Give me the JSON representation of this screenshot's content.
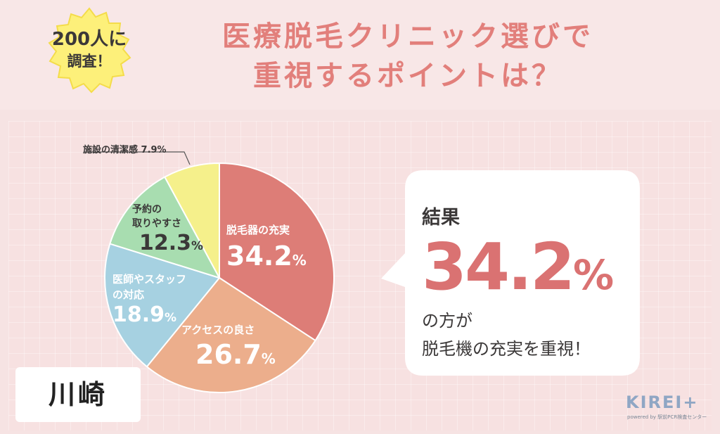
{
  "header": {
    "badge_line1": "200人に",
    "badge_line2": "調査！",
    "title_line1": "医療脱毛クリニック選びで",
    "title_line2": "重視するポイントは？"
  },
  "chart_data": {
    "type": "pie",
    "slices": [
      {
        "label": "脱毛器の充実",
        "value": 34.2,
        "display": "34.2",
        "color": "#dd7d77"
      },
      {
        "label": "アクセスの良さ",
        "value": 26.7,
        "display": "26.7",
        "color": "#ecae8c"
      },
      {
        "label": "医師やスタッフの対応",
        "value": 18.9,
        "display": "18.9",
        "color": "#a6d1e1"
      },
      {
        "label": "予約の取りやすさ",
        "value": 12.3,
        "display": "12.3",
        "color": "#a8ddb0"
      },
      {
        "label": "施設の清潔感",
        "value": 7.9,
        "display": "7.9",
        "color": "#f5f08b"
      }
    ],
    "labels": {
      "s0": {
        "name": "脱毛器の充実",
        "value": "34.2",
        "unit": "%"
      },
      "s1": {
        "name": "アクセスの良さ",
        "value": "26.7",
        "unit": "%"
      },
      "s2": {
        "name1": "医師やスタッフ",
        "name2": "の対応",
        "value": "18.9",
        "unit": "%"
      },
      "s3": {
        "name1": "予約の",
        "name2": "取りやすさ",
        "value": "12.3",
        "unit": "%"
      },
      "s4": {
        "text": "施設の清潔感 7.9%"
      }
    }
  },
  "result": {
    "label": "結果",
    "value": "34.2",
    "unit": "%",
    "line1": "の方が",
    "line2": "脱毛機の充実を重視！"
  },
  "city": "川崎",
  "logo": {
    "main": "KIREI+",
    "sub": "powered by 駅前PCR検査センター"
  }
}
